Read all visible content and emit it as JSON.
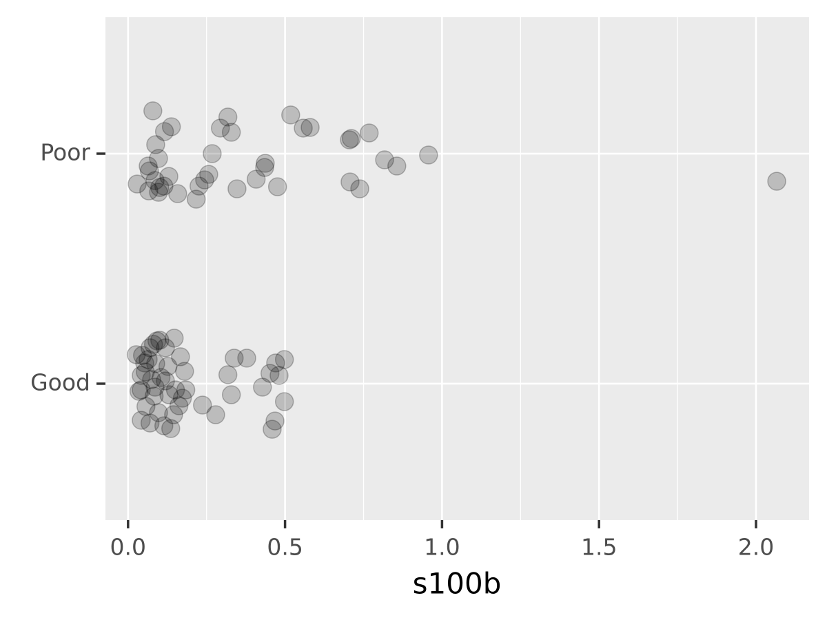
{
  "chart_data": {
    "type": "scatter",
    "xlabel": "s100b",
    "color": "#000000",
    "xlim": [
      -0.072,
      2.169
    ],
    "xticks": [
      {
        "value": 0,
        "label": "0.0"
      },
      0.5,
      {
        "value": 1,
        "label": "1.0"
      },
      1.5,
      {
        "value": 2,
        "label": "2.0"
      }
    ],
    "ylim": [
      0.407,
      2.593
    ],
    "yticks": [
      {
        "value": 1,
        "label": "Good"
      },
      {
        "value": 2,
        "label": "Poor"
      }
    ],
    "grid": true,
    "x": [
      0.079,
      0.318,
      0.518,
      0.138,
      0.294,
      0.329,
      0.558,
      0.58,
      0.116,
      0.705,
      0.711,
      0.768,
      0.088,
      0.268,
      0.957,
      0.097,
      0.817,
      0.856,
      0.437,
      0.435,
      0.064,
      0.068,
      0.257,
      0.244,
      0.13,
      0.086,
      0.029,
      0.408,
      0.226,
      0.476,
      0.347,
      0.707,
      0.738,
      0.066,
      0.101,
      0.114,
      0.158,
      0.217,
      0.097,
      2.066,
      0.046,
      0.081,
      0.101,
      0.147,
      0.167,
      0.064,
      0.119,
      0.088,
      0.055,
      0.18,
      0.042,
      0.075,
      0.119,
      0.086,
      0.042,
      0.035,
      0.151,
      0.184,
      0.13,
      0.083,
      0.173,
      0.162,
      0.057,
      0.097,
      0.145,
      0.07,
      0.042,
      0.114,
      0.136,
      0.237,
      0.279,
      0.338,
      0.378,
      0.318,
      0.329,
      0.452,
      0.47,
      0.481,
      0.498,
      0.428,
      0.498,
      0.468,
      0.459,
      0.07,
      0.092,
      0.026,
      0.127,
      0.053,
      0.105
    ],
    "y": [
      2.186,
      2.159,
      2.168,
      2.117,
      2.111,
      2.093,
      2.111,
      2.114,
      2.096,
      2.06,
      2.066,
      2.09,
      2.039,
      2.0,
      1.994,
      1.979,
      1.973,
      1.946,
      1.958,
      1.94,
      1.946,
      1.925,
      1.91,
      1.886,
      1.901,
      1.883,
      1.868,
      1.889,
      1.859,
      1.856,
      1.847,
      1.877,
      1.847,
      1.838,
      1.853,
      1.859,
      1.826,
      1.802,
      1.832,
      1.88,
      1.123,
      1.171,
      1.189,
      1.198,
      1.117,
      1.105,
      1.156,
      1.087,
      1.051,
      1.054,
      1.036,
      1.018,
      1.012,
      0.985,
      0.973,
      0.967,
      0.973,
      0.973,
      0.952,
      0.946,
      0.937,
      0.904,
      0.901,
      0.874,
      0.865,
      0.829,
      0.841,
      0.817,
      0.805,
      0.907,
      0.865,
      1.111,
      1.111,
      1.039,
      0.952,
      1.045,
      1.09,
      1.036,
      1.105,
      0.985,
      0.922,
      0.838,
      0.802,
      1.156,
      1.186,
      1.126,
      1.075,
      1.09,
      1.027
    ]
  }
}
